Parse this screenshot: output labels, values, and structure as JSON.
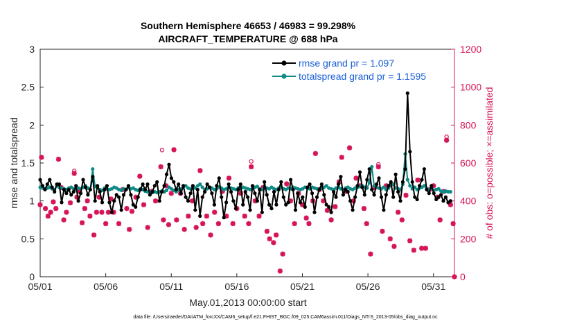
{
  "colors": {
    "rmse": "#000000",
    "spread": "#0f8a86",
    "obs": "#d6145a",
    "axis": "#262626",
    "legend_text": "#1a5fd8"
  },
  "chart_data": {
    "type": "line",
    "title_line1": "Southern Hemisphere 46653 / 46983 = 99.298%",
    "title_line2": "AIRCRAFT_TEMPERATURE @ 688 hPa",
    "xlabel": "May.01,2013 00:00:00 start",
    "ylabel_left": "rmse and totalspread",
    "ylabel_right": "# of obs: o=possible; ×=assimilated",
    "xlim": [
      0,
      31.6
    ],
    "ylim_left": [
      0,
      3
    ],
    "ylim_right": [
      0,
      1200
    ],
    "xticks": [
      {
        "x": 0,
        "label": "05/01"
      },
      {
        "x": 5,
        "label": "05/06"
      },
      {
        "x": 10,
        "label": "05/11"
      },
      {
        "x": 15,
        "label": "05/16"
      },
      {
        "x": 20,
        "label": "05/21"
      },
      {
        "x": 25,
        "label": "05/26"
      },
      {
        "x": 30,
        "label": "05/31"
      }
    ],
    "yticks_left": [
      "0",
      "0.5",
      "1",
      "1.5",
      "2",
      "2.5",
      "3"
    ],
    "yticks_right": [
      "0",
      "200",
      "400",
      "600",
      "800",
      "1000",
      "1200"
    ],
    "legend": [
      {
        "key": "rmse",
        "label": "rmse grand pr = 1.097"
      },
      {
        "key": "spread",
        "label": "totalspread grand pr = 1.1595"
      }
    ],
    "footer": "data file: /Users/raeder/DAI/ATM_forcXX/CAM6_setup/f.e21.FHIST_BGC.f09_025.CAM6assim.011/Diags_NTrS_2013-05/obs_diag_output.nc",
    "series_rmse": [
      1.28,
      1.2,
      1.15,
      1.22,
      1.28,
      1.18,
      1.12,
      1.22,
      1.22,
      0.98,
      1.15,
      1.1,
      1.15,
      1.08,
      1.12,
      1.2,
      1.0,
      1.1,
      1.28,
      1.18,
      1.08,
      1.15,
      1.32,
      1.0,
      1.2,
      1.12,
      0.98,
      1.15,
      1.2,
      0.98,
      0.85,
      1.0,
      1.08,
      1.05,
      0.88,
      1.08,
      1.15,
      1.2,
      1.08,
      0.95,
      0.92,
      1.05,
      1.15,
      1.22,
      1.15,
      1.22,
      1.08,
      1.12,
      1.2,
      1.25,
      1.0,
      1.12,
      1.2,
      1.35,
      1.48,
      1.3,
      1.25,
      1.15,
      1.22,
      1.1,
      1.2,
      1.05,
      1.0,
      1.1,
      1.2,
      0.88,
      1.15,
      0.8,
      1.05,
      1.12,
      1.22,
      1.18,
      1.1,
      0.95,
      1.2,
      1.3,
      1.05,
      0.78,
      0.98,
      1.22,
      1.12,
      1.0,
      0.9,
      1.15,
      1.22,
      0.95,
      1.12,
      1.05,
      0.88,
      1.2,
      1.1,
      1.0,
      1.15,
      0.85,
      1.25,
      1.08,
      0.95,
      0.9,
      1.12,
      0.95,
      1.15,
      1.25,
      1.05,
      0.95,
      0.98,
      1.28,
      1.15,
      0.88,
      1.1,
      0.98,
      1.05,
      0.92,
      1.18,
      1.22,
      1.1,
      0.85,
      1.05,
      1.15,
      1.22,
      1.08,
      0.95,
      0.92,
      0.85,
      1.12,
      1.05,
      1.22,
      1.32,
      1.08,
      1.15,
      1.12,
      1.0,
      0.88,
      1.05,
      1.2,
      1.38,
      1.18,
      1.08,
      1.28,
      1.42,
      1.15,
      1.08,
      1.22,
      1.3,
      1.05,
      0.88,
      1.08,
      1.2,
      1.25,
      1.05,
      1.35,
      1.12,
      1.0,
      1.25,
      1.42,
      2.42,
      1.65,
      1.25,
      1.05,
      1.02,
      1.2,
      1.28,
      1.42,
      1.15,
      1.1,
      1.2,
      1.1,
      1.02,
      1.05,
      1.08,
      1.0,
      1.05,
      0.98,
      1.0
    ],
    "series_spread": [
      1.18,
      1.17,
      1.16,
      1.17,
      1.18,
      1.16,
      1.15,
      1.2,
      1.18,
      1.17,
      1.16,
      1.15,
      1.17,
      1.18,
      1.16,
      1.15,
      1.17,
      1.16,
      1.18,
      1.2,
      1.17,
      1.15,
      1.42,
      1.19,
      1.18,
      1.15,
      1.14,
      1.17,
      1.16,
      1.15,
      1.16,
      1.18,
      1.17,
      1.15,
      1.14,
      1.16,
      1.15,
      1.18,
      1.16,
      1.17,
      1.15,
      1.14,
      1.16,
      1.15,
      1.13,
      1.12,
      1.12,
      1.11,
      1.12,
      1.11,
      1.12,
      1.13,
      1.12,
      1.14,
      1.18,
      1.16,
      1.14,
      1.12,
      1.15,
      1.16,
      1.18,
      1.2,
      1.17,
      1.16,
      1.18,
      1.17,
      1.2,
      1.22,
      1.18,
      1.15,
      1.16,
      1.18,
      1.17,
      1.15,
      1.16,
      1.18,
      1.17,
      1.15,
      1.16,
      1.18,
      1.17,
      1.16,
      1.15,
      1.17,
      1.16,
      1.18,
      1.17,
      1.16,
      1.15,
      1.17,
      1.18,
      1.19,
      1.16,
      1.15,
      1.18,
      1.17,
      1.16,
      1.18,
      1.16,
      1.15,
      1.17,
      1.18,
      1.16,
      1.15,
      1.17,
      1.16,
      1.18,
      1.17,
      1.16,
      1.15,
      1.16,
      1.18,
      1.17,
      1.16,
      1.18,
      1.17,
      1.16,
      1.15,
      1.17,
      1.18,
      1.2,
      1.17,
      1.16,
      1.15,
      1.17,
      1.18,
      1.16,
      1.15,
      1.17,
      1.18,
      1.16,
      1.15,
      1.17,
      1.18,
      1.19,
      1.2,
      1.18,
      1.17,
      1.24,
      1.45,
      1.2,
      1.18,
      1.17,
      1.16,
      1.18,
      1.15,
      1.17,
      1.2,
      1.22,
      1.17,
      1.16,
      1.15,
      1.22,
      1.62,
      1.28,
      1.2,
      1.16,
      1.18,
      1.15,
      1.17,
      1.18,
      1.2,
      1.16,
      1.15,
      1.17,
      1.14,
      1.15,
      1.16,
      1.13,
      1.12,
      1.13,
      1.12,
      1.12
    ],
    "obs_scatter": [
      {
        "x": 0.0,
        "v": 380
      },
      {
        "x": 0.1,
        "v": 630
      },
      {
        "x": 0.4,
        "v": 360
      },
      {
        "x": 0.6,
        "v": 320
      },
      {
        "x": 0.8,
        "v": 340
      },
      {
        "x": 1.0,
        "v": 395
      },
      {
        "x": 1.2,
        "v": 360
      },
      {
        "x": 1.4,
        "v": 620
      },
      {
        "x": 1.6,
        "v": 470
      },
      {
        "x": 1.8,
        "v": 300
      },
      {
        "x": 2.0,
        "v": 340
      },
      {
        "x": 2.3,
        "v": 390
      },
      {
        "x": 2.6,
        "v": 545
      },
      {
        "x": 2.8,
        "v": 420
      },
      {
        "x": 3.0,
        "v": 450
      },
      {
        "x": 3.2,
        "v": 285
      },
      {
        "x": 3.4,
        "v": 360
      },
      {
        "x": 3.6,
        "v": 400
      },
      {
        "x": 3.8,
        "v": 320
      },
      {
        "x": 4.1,
        "v": 220
      },
      {
        "x": 4.3,
        "v": 340
      },
      {
        "x": 4.5,
        "v": 420
      },
      {
        "x": 4.7,
        "v": 340
      },
      {
        "x": 5.0,
        "v": 280
      },
      {
        "x": 5.2,
        "v": 340
      },
      {
        "x": 5.4,
        "v": 410
      },
      {
        "x": 5.6,
        "v": 340
      },
      {
        "x": 6.0,
        "v": 280
      },
      {
        "x": 6.3,
        "v": 460
      },
      {
        "x": 6.6,
        "v": 360
      },
      {
        "x": 6.8,
        "v": 250
      },
      {
        "x": 7.0,
        "v": 345
      },
      {
        "x": 7.3,
        "v": 420
      },
      {
        "x": 7.6,
        "v": 530
      },
      {
        "x": 7.9,
        "v": 380
      },
      {
        "x": 8.2,
        "v": 260
      },
      {
        "x": 8.5,
        "v": 450
      },
      {
        "x": 8.8,
        "v": 400
      },
      {
        "x": 9.2,
        "v": 580
      },
      {
        "x": 9.4,
        "v": 300
      },
      {
        "x": 9.6,
        "v": 480
      },
      {
        "x": 9.8,
        "v": 275
      },
      {
        "x": 10.0,
        "v": 440
      },
      {
        "x": 10.2,
        "v": 670
      },
      {
        "x": 10.4,
        "v": 300
      },
      {
        "x": 10.7,
        "v": 440
      },
      {
        "x": 11.0,
        "v": 250
      },
      {
        "x": 11.3,
        "v": 320
      },
      {
        "x": 11.6,
        "v": 400
      },
      {
        "x": 11.9,
        "v": 260
      },
      {
        "x": 12.2,
        "v": 560
      },
      {
        "x": 12.4,
        "v": 280
      },
      {
        "x": 12.7,
        "v": 320
      },
      {
        "x": 13.0,
        "v": 220
      },
      {
        "x": 13.3,
        "v": 340
      },
      {
        "x": 13.6,
        "v": 280
      },
      {
        "x": 13.9,
        "v": 450
      },
      {
        "x": 14.2,
        "v": 320
      },
      {
        "x": 14.4,
        "v": 520
      },
      {
        "x": 14.7,
        "v": 280
      },
      {
        "x": 15.0,
        "v": 360
      },
      {
        "x": 15.3,
        "v": 440
      },
      {
        "x": 15.6,
        "v": 320
      },
      {
        "x": 15.9,
        "v": 280
      },
      {
        "x": 16.1,
        "v": 580
      },
      {
        "x": 16.4,
        "v": 400
      },
      {
        "x": 16.7,
        "v": 320
      },
      {
        "x": 17.0,
        "v": 470
      },
      {
        "x": 17.3,
        "v": 240
      },
      {
        "x": 17.5,
        "v": 200
      },
      {
        "x": 17.8,
        "v": 180
      },
      {
        "x": 18.0,
        "v": 220
      },
      {
        "x": 18.3,
        "v": 30
      },
      {
        "x": 18.5,
        "v": 120
      },
      {
        "x": 18.8,
        "v": 490
      },
      {
        "x": 19.1,
        "v": 400
      },
      {
        "x": 19.4,
        "v": 280
      },
      {
        "x": 19.7,
        "v": 440
      },
      {
        "x": 20.0,
        "v": 380
      },
      {
        "x": 20.3,
        "v": 310
      },
      {
        "x": 20.5,
        "v": 280
      },
      {
        "x": 20.8,
        "v": 400
      },
      {
        "x": 21.0,
        "v": 650
      },
      {
        "x": 21.3,
        "v": 460
      },
      {
        "x": 21.6,
        "v": 400
      },
      {
        "x": 21.9,
        "v": 350
      },
      {
        "x": 22.2,
        "v": 300
      },
      {
        "x": 22.5,
        "v": 370
      },
      {
        "x": 22.8,
        "v": 500
      },
      {
        "x": 23.0,
        "v": 630
      },
      {
        "x": 23.3,
        "v": 450
      },
      {
        "x": 23.6,
        "v": 680
      },
      {
        "x": 23.9,
        "v": 400
      },
      {
        "x": 24.1,
        "v": 520
      },
      {
        "x": 24.4,
        "v": 480
      },
      {
        "x": 24.7,
        "v": 360
      },
      {
        "x": 24.9,
        "v": 280
      },
      {
        "x": 25.2,
        "v": 120
      },
      {
        "x": 25.5,
        "v": 470
      },
      {
        "x": 25.8,
        "v": 580
      },
      {
        "x": 26.1,
        "v": 240
      },
      {
        "x": 26.4,
        "v": 480
      },
      {
        "x": 26.7,
        "v": 200
      },
      {
        "x": 27.0,
        "v": 160
      },
      {
        "x": 27.3,
        "v": 340
      },
      {
        "x": 27.6,
        "v": 300
      },
      {
        "x": 27.9,
        "v": 430
      },
      {
        "x": 28.2,
        "v": 190
      },
      {
        "x": 28.5,
        "v": 140
      },
      {
        "x": 28.8,
        "v": 510
      },
      {
        "x": 29.1,
        "v": 150
      },
      {
        "x": 29.4,
        "v": 150
      },
      {
        "x": 29.7,
        "v": 460
      },
      {
        "x": 30.0,
        "v": 480
      },
      {
        "x": 30.3,
        "v": 420
      },
      {
        "x": 30.5,
        "v": 300
      },
      {
        "x": 30.8,
        "v": 450
      },
      {
        "x": 31.0,
        "v": 720
      },
      {
        "x": 31.3,
        "v": 380
      },
      {
        "x": 31.5,
        "v": 280
      },
      {
        "x": 31.6,
        "v": 0
      }
    ],
    "obs_possible": [
      {
        "x": 9.3,
        "v": 650
      },
      {
        "x": 2.6,
        "v": 540
      },
      {
        "x": 16.1,
        "v": 590
      },
      {
        "x": 25.8,
        "v": 575
      },
      {
        "x": 31.0,
        "v": 720
      }
    ]
  }
}
